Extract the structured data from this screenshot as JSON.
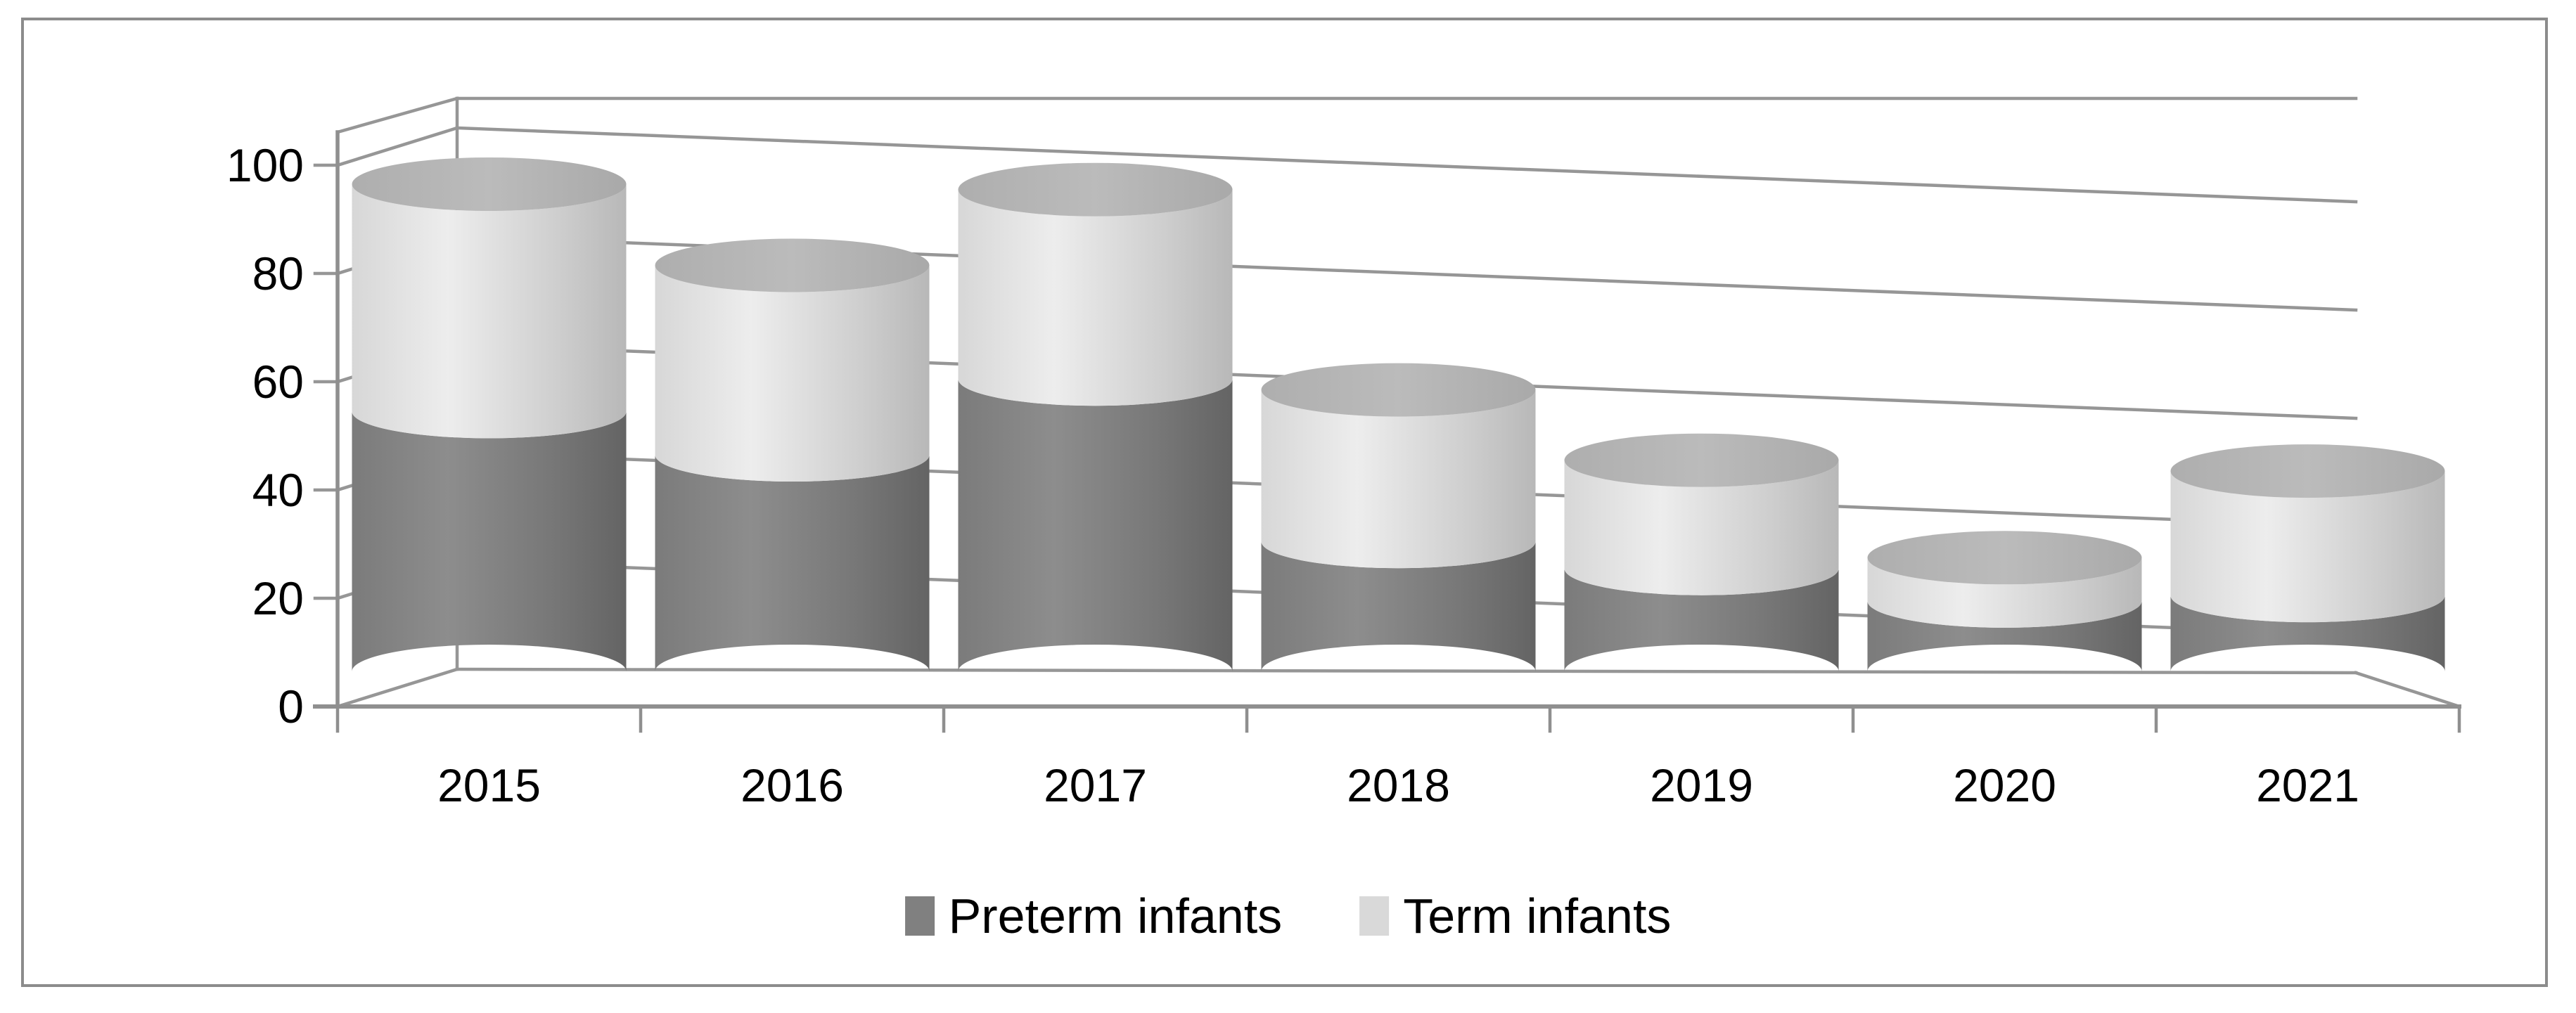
{
  "figure": {
    "background": "#FFFFFF",
    "border_color": "#8C8C8C"
  },
  "chart_data": {
    "type": "bar",
    "subtype": "3d-stacked-cylinder",
    "title": "",
    "xlabel": "",
    "ylabel": "",
    "categories": [
      "2015",
      "2016",
      "2017",
      "2018",
      "2019",
      "2020",
      "2021"
    ],
    "series": [
      {
        "name": "Preterm infants",
        "color": "#808080",
        "values": [
          48,
          40,
          54,
          24,
          19,
          13,
          14
        ]
      },
      {
        "name": "Term infants",
        "color": "#D9D9D9",
        "values": [
          42,
          35,
          35,
          28,
          20,
          8,
          23
        ]
      }
    ],
    "ylim": [
      0,
      100
    ],
    "yticks": [
      0,
      20,
      40,
      60,
      80,
      100
    ],
    "grid": true,
    "gridline_color": "#969696",
    "axis_color": "#8F8F8F",
    "tick_label_color": "#000000",
    "legend_position": "bottom"
  }
}
